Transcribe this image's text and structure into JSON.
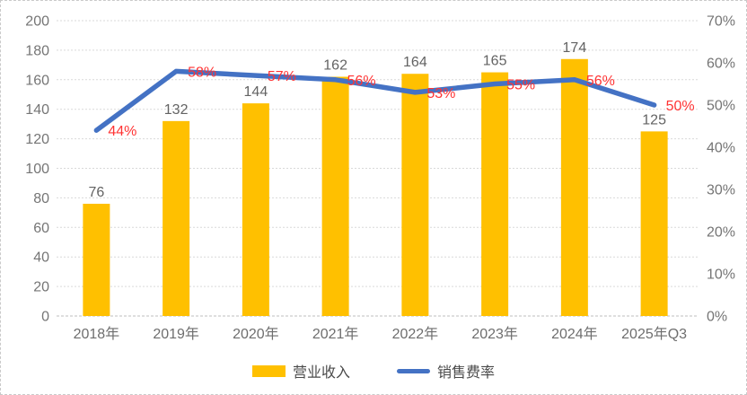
{
  "chart_data": {
    "type": "combo",
    "title": "",
    "categories": [
      "2018年",
      "2019年",
      "2020年",
      "2021年",
      "2022年",
      "2023年",
      "2024年",
      "2025年Q3"
    ],
    "series": [
      {
        "name": "营业收入",
        "type": "bar",
        "axis": "left",
        "color": "#FFC000",
        "values": [
          76,
          132,
          144,
          162,
          164,
          165,
          174,
          125
        ],
        "value_labels": [
          "76",
          "132",
          "144",
          "162",
          "164",
          "165",
          "174",
          "125"
        ],
        "label_color": "#636363"
      },
      {
        "name": "销售费率",
        "type": "line",
        "axis": "right",
        "color": "#4472C4",
        "values": [
          44,
          58,
          57,
          56,
          53,
          55,
          56,
          50
        ],
        "value_labels": [
          "44%",
          "58%",
          "57%",
          "56%",
          "53%",
          "55%",
          "56%",
          "50%"
        ],
        "label_color": "#FF3333"
      }
    ],
    "left_axis": {
      "min": 0,
      "max": 200,
      "step": 20,
      "tick_labels": [
        "0",
        "20",
        "40",
        "60",
        "80",
        "100",
        "120",
        "140",
        "160",
        "180",
        "200"
      ]
    },
    "right_axis": {
      "min": 0,
      "max": 70,
      "step": 10,
      "tick_labels": [
        "0%",
        "10%",
        "20%",
        "30%",
        "40%",
        "50%",
        "60%",
        "70%"
      ]
    },
    "grid": true,
    "legend_position": "bottom",
    "colors": {
      "gridline": "#d9d9d9",
      "baseline": "#bfbfbf",
      "axis_text": "#757575",
      "category_text": "#6e6e6e"
    }
  }
}
